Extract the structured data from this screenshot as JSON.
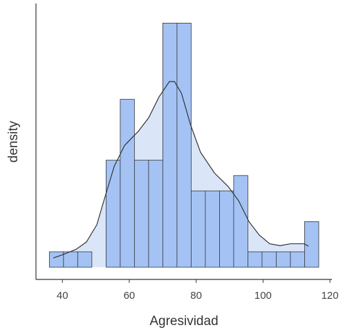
{
  "chart_data": {
    "type": "histogram",
    "x_label": "Agresividad",
    "y_label": "density",
    "bins": [
      36.1,
      40.34,
      44.58,
      48.82,
      53.06,
      57.3,
      61.54,
      65.78,
      70.02,
      74.26,
      78.5,
      82.74,
      86.98,
      91.22,
      95.46,
      99.7,
      103.94,
      108.18,
      112.42,
      116.66
    ],
    "values": [
      0.0025,
      0.0025,
      0.0025,
      0,
      0.0174,
      0.0273,
      0.0174,
      0.0174,
      0.0397,
      0.0397,
      0.0124,
      0.0124,
      0.0124,
      0.0149,
      0.0025,
      0.0025,
      0.0025,
      0.0025,
      0.0074
    ],
    "color": "#a4c2f4",
    "edge_color": "#333333",
    "density": {
      "x": [
        37.3,
        40,
        44.1,
        47.2,
        50.3,
        52.4,
        55.5,
        58.6,
        62.7,
        65.8,
        68.9,
        72.0,
        73.5,
        75.6,
        78.3,
        81.3,
        85.5,
        89.6,
        92.7,
        95.8,
        98.9,
        102.0,
        105.1,
        108.2,
        112.3,
        113.6
      ],
      "y": [
        0.0015,
        0.002,
        0.0029,
        0.0041,
        0.0069,
        0.0108,
        0.0164,
        0.0198,
        0.0221,
        0.0243,
        0.0277,
        0.0302,
        0.0302,
        0.0283,
        0.0232,
        0.0187,
        0.0153,
        0.0131,
        0.0108,
        0.0074,
        0.0052,
        0.0038,
        0.0035,
        0.0038,
        0.0038,
        0.0034
      ],
      "fill": "#dae6f8",
      "color": "#333333"
    },
    "xlim": [
      32.1,
      120.6
    ],
    "xticks": [
      40,
      60,
      80,
      100,
      120
    ],
    "ylim": [
      -0.002,
      0.0429
    ]
  }
}
